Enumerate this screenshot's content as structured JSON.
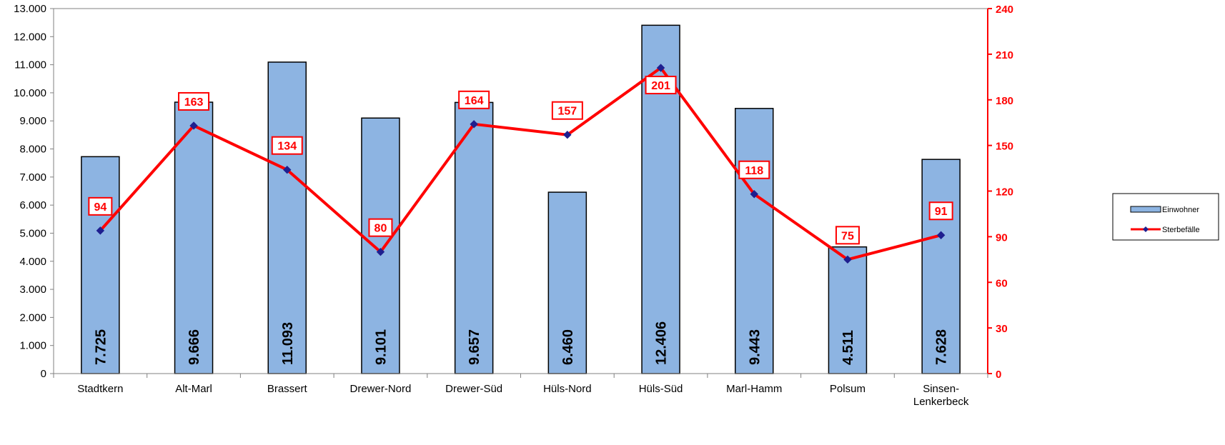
{
  "chart_data": {
    "type": "bar",
    "categories": [
      "Stadtkern",
      "Alt-Marl",
      "Brassert",
      "Drewer-Nord",
      "Drewer-Süd",
      "Hüls-Nord",
      "Hüls-Süd",
      "Marl-Hamm",
      "Polsum",
      [
        "Sinsen-",
        "Lenkerbeck"
      ]
    ],
    "series": [
      {
        "name": "Einwohner",
        "type": "bar",
        "axis": "left",
        "color": "#8db4e2",
        "values": [
          7725,
          9666,
          11093,
          9101,
          9657,
          6460,
          12406,
          9443,
          4511,
          7628
        ],
        "labels": [
          "7.725",
          "9.666",
          "11.093",
          "9.101",
          "9.657",
          "6.460",
          "12.406",
          "9.443",
          "4.511",
          "7.628"
        ]
      },
      {
        "name": "Sterbefälle",
        "type": "line",
        "axis": "right",
        "color": "#ff0000",
        "marker_color": "#1f1f8f",
        "values": [
          94,
          163,
          134,
          80,
          164,
          157,
          201,
          118,
          75,
          91
        ],
        "labels": [
          "94",
          "163",
          "134",
          "80",
          "164",
          "157",
          "201",
          "118",
          "75",
          "91"
        ]
      }
    ],
    "y_left": {
      "range": [
        0,
        13000
      ],
      "ticks": [
        0,
        1000,
        2000,
        3000,
        4000,
        5000,
        6000,
        7000,
        8000,
        9000,
        10000,
        11000,
        12000,
        13000
      ],
      "tick_labels": [
        "0",
        "1.000",
        "2.000",
        "3.000",
        "4.000",
        "5.000",
        "6.000",
        "7.000",
        "8.000",
        "9.000",
        "10.000",
        "11.000",
        "12.000",
        "13.000"
      ]
    },
    "y_right": {
      "range": [
        0,
        240
      ],
      "ticks": [
        0,
        30,
        60,
        90,
        120,
        150,
        180,
        210,
        240
      ],
      "tick_labels": [
        "0",
        "30",
        "60",
        "90",
        "120",
        "150",
        "180",
        "210",
        "240"
      ],
      "color": "#ff0000"
    },
    "legend": {
      "placement": "right",
      "entries": [
        "Einwohner",
        "Sterbefälle"
      ]
    },
    "grid": false
  }
}
